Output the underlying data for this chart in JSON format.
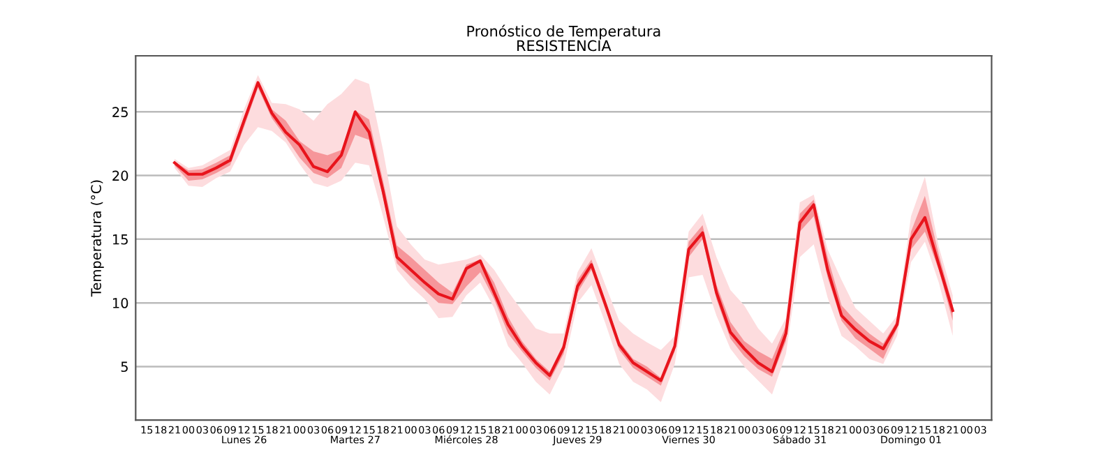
{
  "chart_data": {
    "type": "line",
    "title": "Pronóstico de Temperatura",
    "subtitle": "RESISTENCIA",
    "ylabel": "Temperatura (°C)",
    "categories": [
      "15",
      "18",
      "21",
      "00",
      "03",
      "06",
      "09",
      "12\nLunes 26",
      "15",
      "18",
      "21",
      "00",
      "03",
      "06",
      "09",
      "12\nMartes 27",
      "15",
      "18",
      "21",
      "00",
      "03",
      "06",
      "09",
      "12\nMiércoles 28",
      "15",
      "18",
      "21",
      "00",
      "03",
      "06",
      "09",
      "12\nJueves 29",
      "15",
      "18",
      "21",
      "00",
      "03",
      "06",
      "09",
      "12\nViernes 30",
      "15",
      "18",
      "21",
      "00",
      "03",
      "06",
      "09",
      "12\nSábado 31",
      "15",
      "18",
      "21",
      "00",
      "03",
      "06",
      "09",
      "12\nDomingo 01",
      "15",
      "18",
      "21",
      "00",
      "03"
    ],
    "series": [
      {
        "type": "area",
        "color": "#fddcde",
        "values": [
          null,
          null,
          null,
          null,
          null,
          null,
          null,
          null,
          null,
          null,
          null,
          null,
          null,
          null,
          null,
          null,
          null,
          null,
          null,
          null,
          null,
          null,
          null,
          null,
          null,
          null,
          null,
          null,
          null,
          null,
          null,
          null,
          null,
          null,
          null,
          null,
          null,
          null,
          null,
          null,
          null,
          null,
          null,
          null,
          null,
          null,
          null,
          null,
          null,
          null,
          null,
          null,
          null,
          null,
          null,
          null,
          null,
          null,
          null,
          null,
          null
        ],
        "lower": [
          null,
          null,
          20.6,
          19.2,
          19.1,
          19.8,
          20.3,
          22.4,
          23.8,
          23.5,
          22.6,
          20.9,
          19.4,
          19.1,
          19.6,
          21.0,
          20.8,
          16.8,
          12.6,
          11.3,
          10.3,
          8.8,
          8.9,
          10.6,
          11.6,
          9.6,
          6.6,
          5.3,
          3.8,
          2.8,
          5.0,
          10.0,
          11.4,
          8.4,
          5.2,
          3.8,
          3.2,
          2.2,
          5.2,
          12.0,
          12.2,
          9.0,
          6.4,
          5.0,
          3.9,
          2.8,
          6.0,
          13.6,
          14.6,
          10.4,
          7.4,
          6.6,
          5.6,
          5.2,
          7.4,
          13.2,
          14.8,
          11.6,
          7.4,
          null,
          null
        ],
        "upper": [
          null,
          null,
          21.3,
          20.6,
          20.8,
          21.4,
          22.0,
          25.2,
          27.9,
          25.7,
          25.6,
          25.2,
          24.3,
          25.6,
          26.4,
          27.6,
          27.2,
          22.0,
          16.0,
          14.6,
          13.4,
          13.0,
          13.2,
          13.4,
          13.8,
          12.6,
          10.9,
          9.4,
          8.0,
          7.6,
          7.6,
          12.4,
          14.3,
          11.4,
          8.6,
          7.6,
          6.9,
          6.3,
          7.4,
          15.6,
          17.0,
          13.6,
          11.0,
          9.8,
          8.0,
          6.8,
          8.8,
          17.9,
          18.5,
          14.2,
          11.8,
          9.6,
          8.6,
          7.6,
          9.0,
          16.8,
          19.9,
          14.4,
          10.6,
          null,
          null
        ]
      },
      {
        "color": "#e8141c",
        "values": [
          null,
          null,
          21.0,
          20.1,
          20.1,
          20.6,
          21.2,
          24.3,
          27.3,
          24.9,
          23.4,
          22.4,
          20.7,
          20.3,
          21.6,
          25.0,
          23.4,
          18.8,
          13.6,
          12.6,
          11.6,
          10.7,
          10.3,
          12.7,
          13.3,
          10.8,
          8.3,
          6.6,
          5.3,
          4.3,
          6.5,
          11.3,
          13.0,
          9.9,
          6.7,
          5.3,
          4.6,
          3.9,
          6.6,
          14.2,
          15.5,
          10.8,
          7.7,
          6.4,
          5.3,
          4.6,
          7.6,
          16.3,
          17.7,
          12.6,
          9.0,
          7.9,
          7.0,
          6.4,
          8.3,
          15.0,
          16.7,
          13.0,
          9.4,
          null,
          null
        ],
        "lower": [
          null,
          null,
          20.8,
          19.6,
          19.7,
          20.2,
          20.8,
          23.8,
          26.9,
          24.5,
          23.0,
          21.4,
          20.2,
          19.8,
          20.6,
          23.2,
          22.8,
          18.3,
          13.1,
          12.0,
          11.0,
          10.0,
          9.9,
          11.3,
          12.4,
          10.3,
          7.6,
          6.2,
          4.9,
          3.9,
          6.0,
          10.8,
          12.6,
          9.5,
          6.3,
          4.9,
          4.2,
          3.5,
          6.2,
          13.6,
          15.0,
          10.3,
          7.2,
          5.8,
          4.8,
          4.2,
          7.0,
          15.6,
          16.8,
          12.0,
          8.6,
          7.2,
          6.4,
          5.6,
          8.0,
          14.2,
          15.6,
          12.6,
          8.6,
          null,
          null
        ],
        "upper": [
          null,
          null,
          21.1,
          20.4,
          20.5,
          21.0,
          21.6,
          24.6,
          27.4,
          25.2,
          24.3,
          22.7,
          21.9,
          21.6,
          22.0,
          25.1,
          24.4,
          19.6,
          14.5,
          13.6,
          12.6,
          11.6,
          10.8,
          13.0,
          13.4,
          11.6,
          8.9,
          7.0,
          5.6,
          4.6,
          6.8,
          11.8,
          13.4,
          10.2,
          7.0,
          5.6,
          5.0,
          4.1,
          6.9,
          14.8,
          16.1,
          11.4,
          8.5,
          7.0,
          6.2,
          5.6,
          8.2,
          17.0,
          18.1,
          13.6,
          9.8,
          8.6,
          7.6,
          6.8,
          8.6,
          15.6,
          18.4,
          13.8,
          9.8,
          null,
          null
        ]
      }
    ],
    "ylim": [
      0.8,
      29.4
    ],
    "yticks": [
      5,
      10,
      15,
      20,
      25
    ],
    "grid": "y",
    "marker": "none",
    "line_style": "solid"
  }
}
